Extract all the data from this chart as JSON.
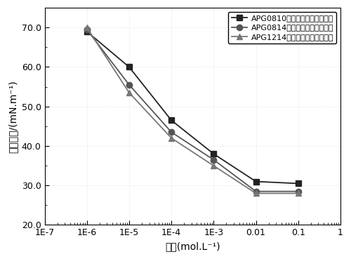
{
  "series": [
    {
      "label": "APG0810罧基甜菜碗表面活性剂",
      "x": [
        1e-06,
        1e-05,
        0.0001,
        0.001,
        0.01,
        0.1
      ],
      "y": [
        69.0,
        60.0,
        46.5,
        38.0,
        31.0,
        30.5
      ],
      "color": "#222222",
      "marker": "s",
      "markersize": 6,
      "linewidth": 1.3
    },
    {
      "label": "APG0814罧基甜菜碗表面活性剂",
      "x": [
        1e-06,
        1e-05,
        0.0001,
        0.001,
        0.01,
        0.1
      ],
      "y": [
        69.5,
        55.5,
        43.5,
        36.5,
        28.5,
        28.5
      ],
      "color": "#555555",
      "marker": "o",
      "markersize": 6,
      "linewidth": 1.3
    },
    {
      "label": "APG1214罧基甜菜碗表面活性剂",
      "x": [
        1e-06,
        1e-05,
        0.0001,
        0.001,
        0.01,
        0.1
      ],
      "y": [
        70.0,
        53.5,
        42.0,
        35.0,
        28.0,
        28.0
      ],
      "color": "#777777",
      "marker": "^",
      "markersize": 6,
      "linewidth": 1.3
    }
  ],
  "xlabel": "浓度(mol.L⁻¹)",
  "ylabel": "表面张力/(mN.m⁻¹)",
  "xlim": [
    1e-07,
    1
  ],
  "ylim": [
    20.0,
    75.0
  ],
  "yticks": [
    20.0,
    30.0,
    40.0,
    50.0,
    60.0,
    70.0
  ],
  "xtick_positions": [
    1e-07,
    1e-06,
    1e-05,
    0.0001,
    0.001,
    0.01,
    0.1,
    1
  ],
  "xtick_labels": [
    "1E-7",
    "1E-6",
    "1E-5",
    "1E-4",
    "1E-3",
    "0.01",
    "0.1",
    "1"
  ],
  "legend_loc": "upper right",
  "background_color": "#ffffff"
}
